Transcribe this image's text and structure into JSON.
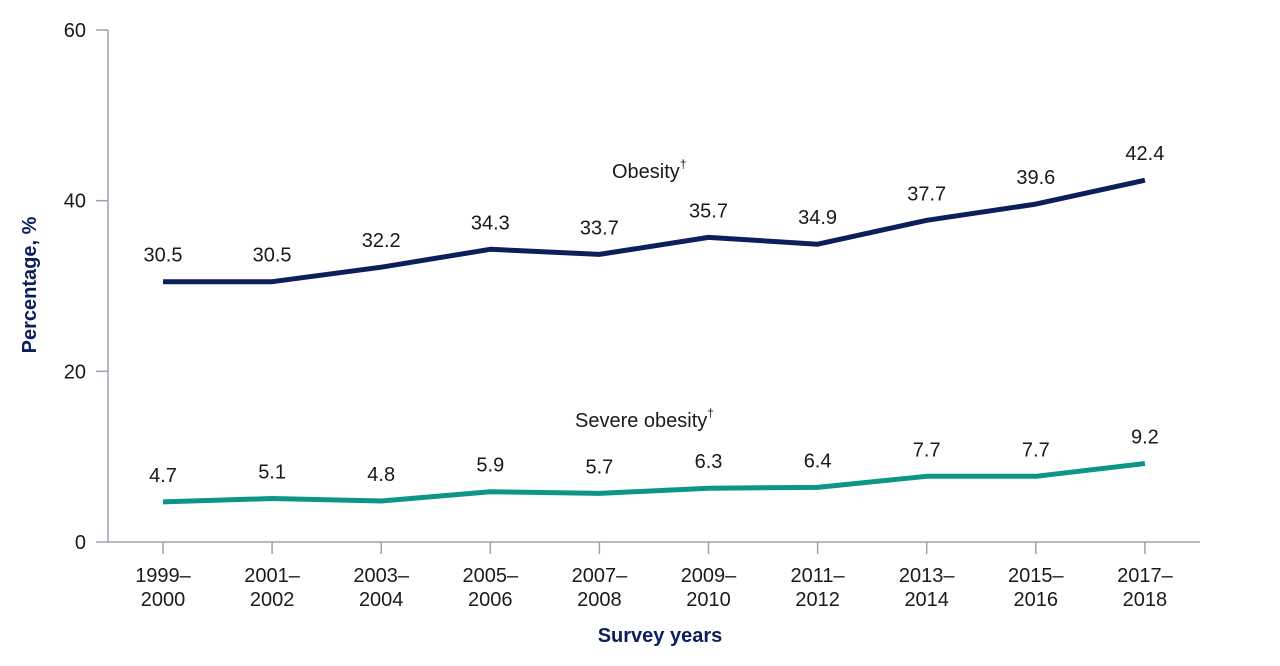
{
  "chart_data": {
    "type": "line",
    "title": "",
    "xlabel": "Survey years",
    "ylabel": "Percentage, %",
    "ylim": [
      0,
      60
    ],
    "yticks": [
      0,
      20,
      40,
      60
    ],
    "grid": false,
    "categories": [
      [
        "1999–",
        "2000"
      ],
      [
        "2001–",
        "2002"
      ],
      [
        "2003–",
        "2004"
      ],
      [
        "2005–",
        "2006"
      ],
      [
        "2007–",
        "2008"
      ],
      [
        "2009–",
        "2010"
      ],
      [
        "2011–",
        "2012"
      ],
      [
        "2013–",
        "2014"
      ],
      [
        "2015–",
        "2016"
      ],
      [
        "2017–",
        "2018"
      ]
    ],
    "series": [
      {
        "name": "Obesity",
        "superscript": "†",
        "color": "#0b1f5c",
        "values": [
          30.5,
          30.5,
          32.2,
          34.3,
          33.7,
          35.7,
          34.9,
          37.7,
          39.6,
          42.4
        ],
        "labels": [
          "30.5",
          "30.5",
          "32.2",
          "34.3",
          "33.7",
          "35.7",
          "34.9",
          "37.7",
          "39.6",
          "42.4"
        ]
      },
      {
        "name": "Severe obesity",
        "superscript": "†",
        "color": "#0f9488",
        "values": [
          4.7,
          5.1,
          4.8,
          5.9,
          5.7,
          6.3,
          6.4,
          7.7,
          7.7,
          9.2
        ],
        "labels": [
          "4.7",
          "5.1",
          "4.8",
          "5.9",
          "5.7",
          "6.3",
          "6.4",
          "7.7",
          "7.7",
          "9.2"
        ]
      }
    ]
  }
}
